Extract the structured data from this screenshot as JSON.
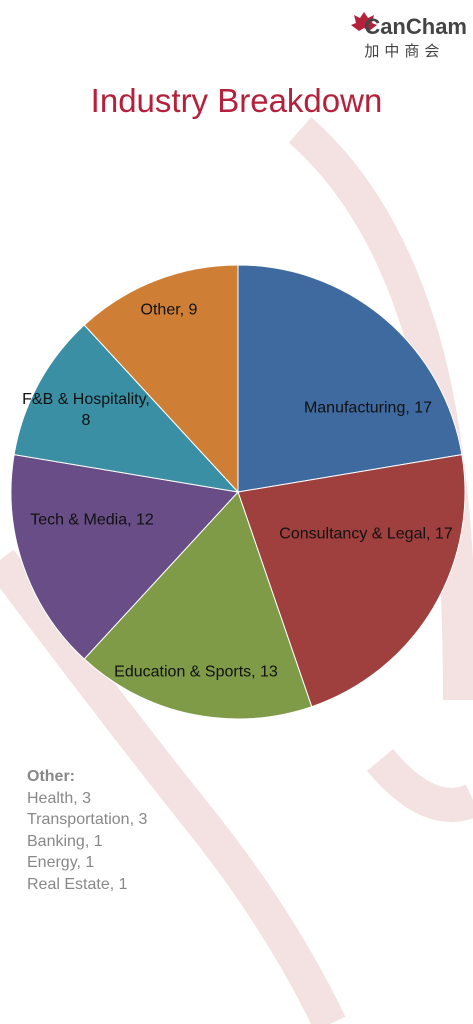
{
  "logo": {
    "name": "CanCham",
    "subtitle": "加中商会"
  },
  "chart_data": {
    "type": "pie",
    "title": "Industry Breakdown",
    "values": [
      17,
      17,
      13,
      12,
      8,
      9
    ],
    "value_labels": [
      "Manufacturing, 17",
      "Consultancy & Legal, 17",
      "Education & Sports, 13",
      "Tech & Media, 12",
      "F&B & Hospitality, 8",
      "Other, 9"
    ],
    "colors": [
      "#3e6a9f",
      "#9f3f3e",
      "#7f9b48",
      "#684d86",
      "#3a8fa5",
      "#cf7f35"
    ]
  },
  "other_breakdown": {
    "heading": "Other:",
    "items": [
      "Health, 3",
      "Transportation, 3",
      "Banking, 1",
      "Energy, 1",
      "Real Estate, 1"
    ]
  }
}
